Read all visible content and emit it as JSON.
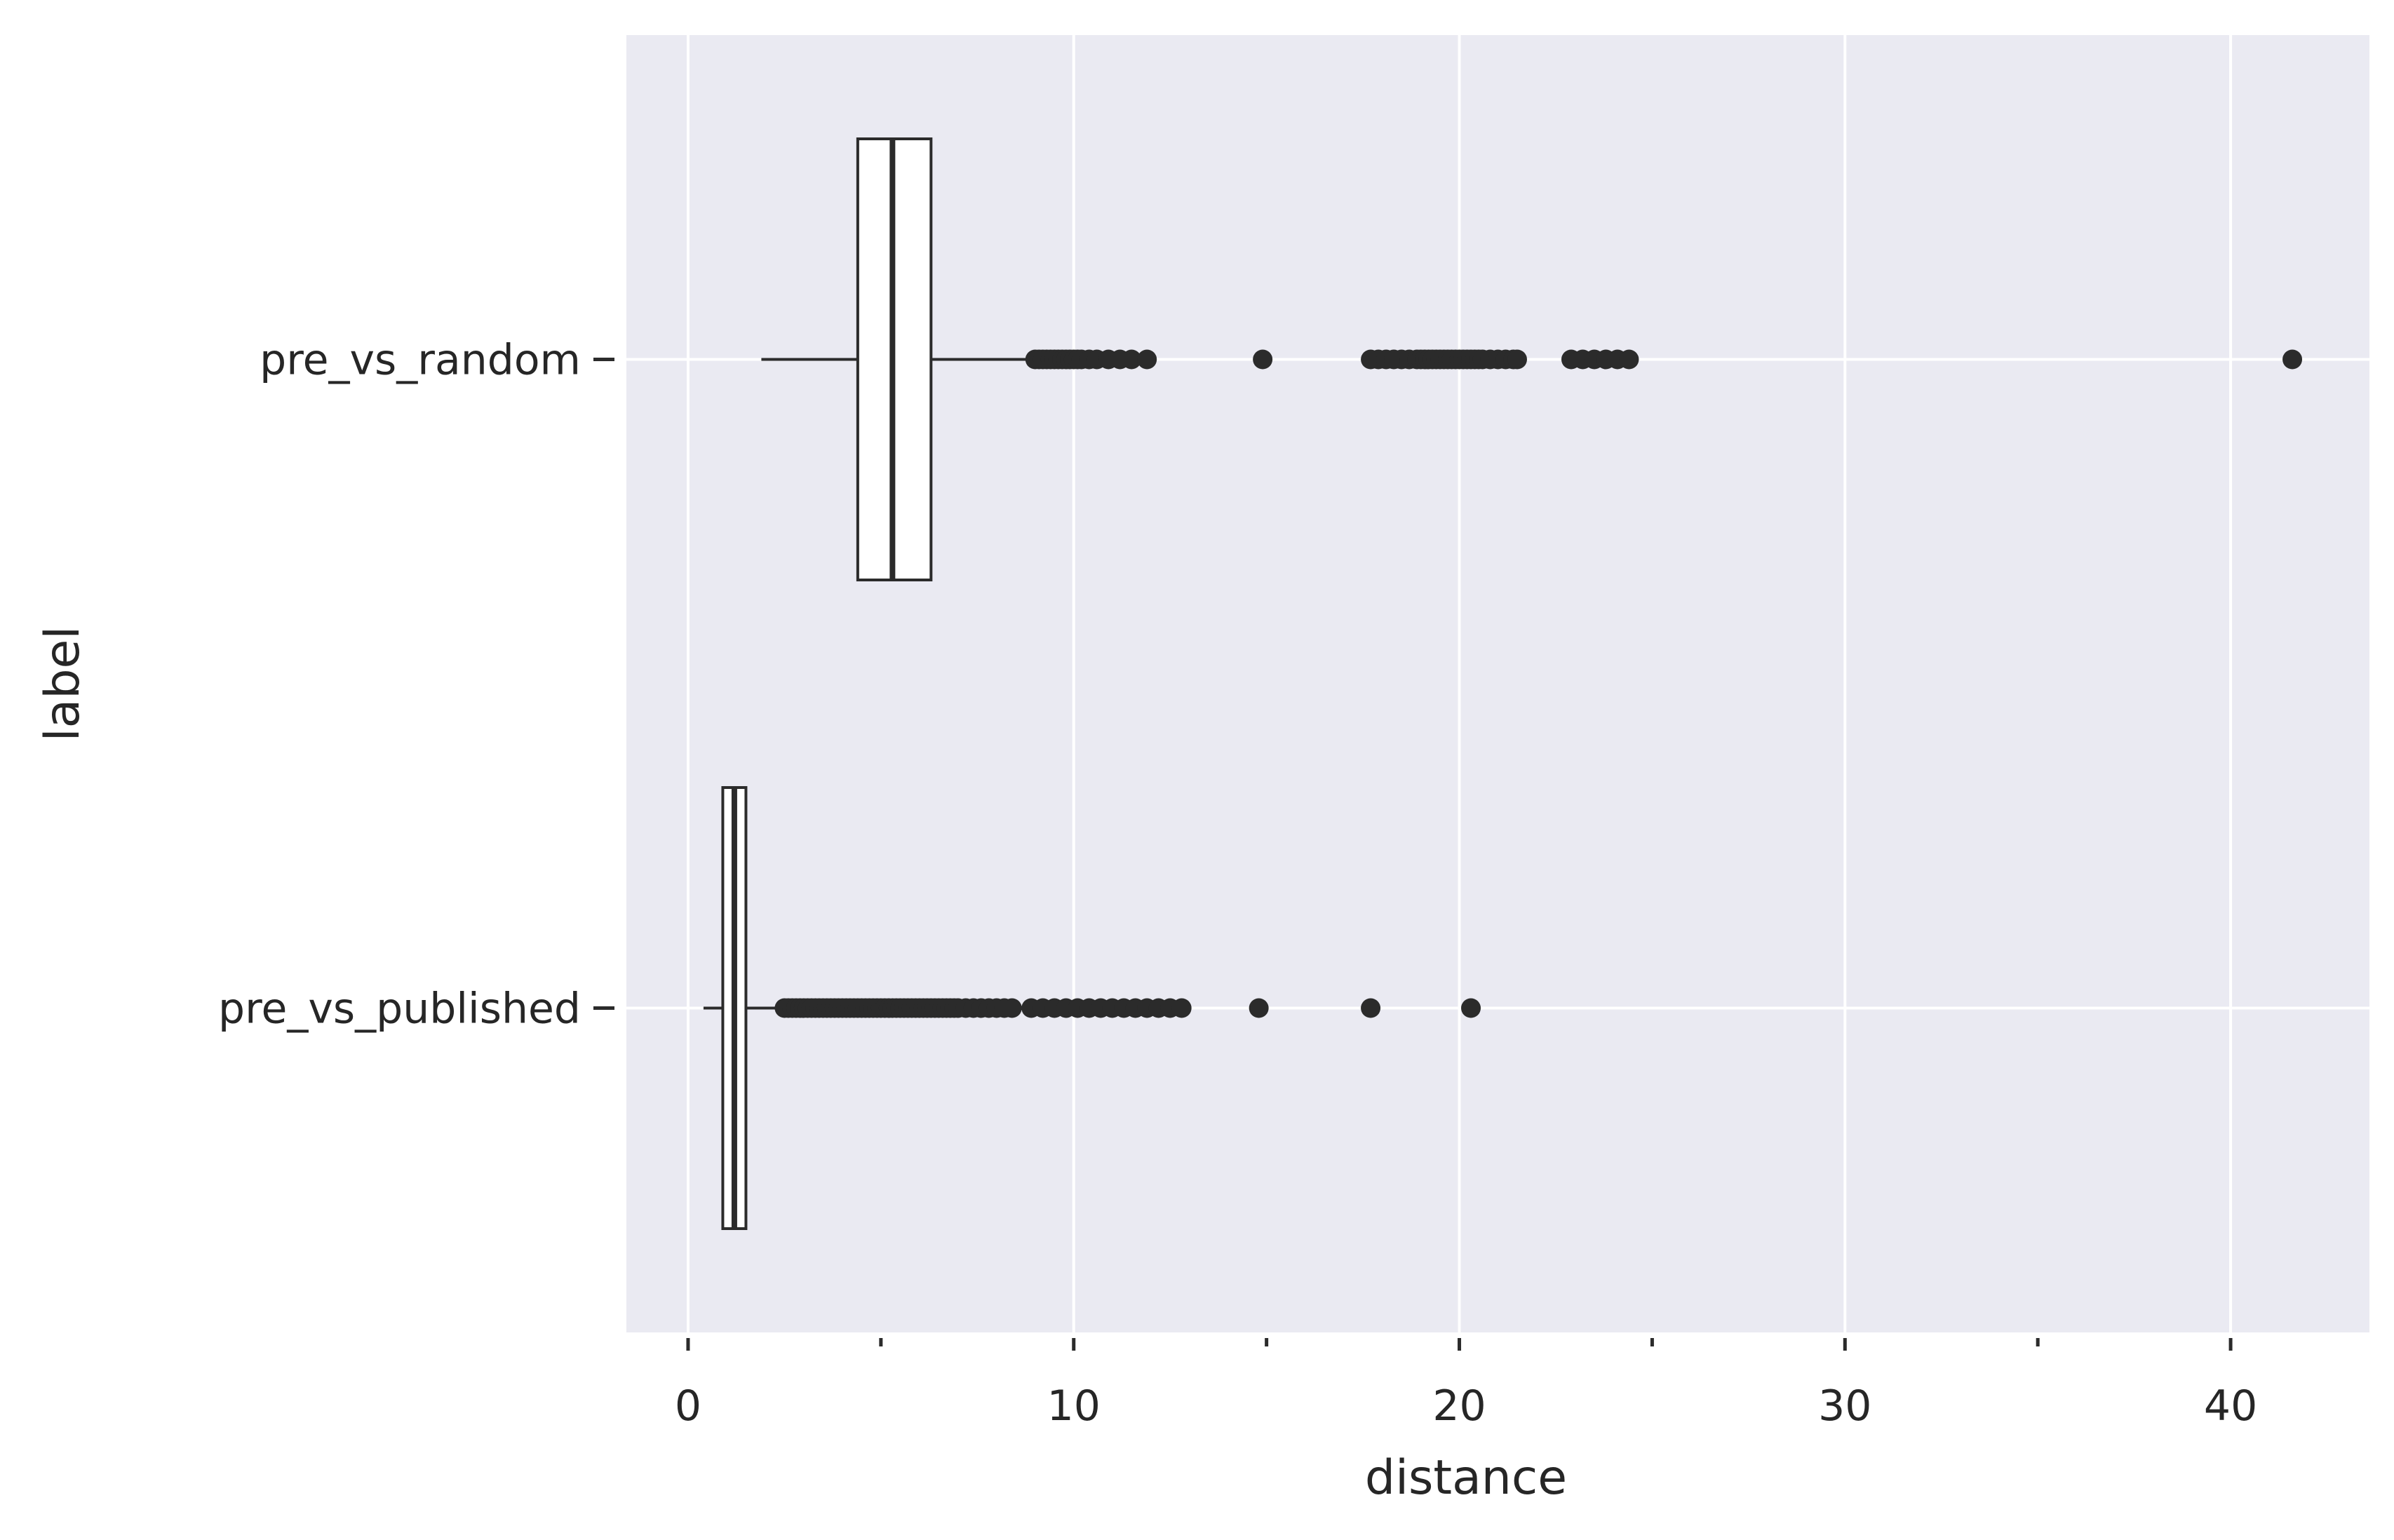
{
  "chart_data": {
    "type": "boxplot",
    "orientation": "horizontal",
    "xlabel": "distance",
    "ylabel": "label",
    "xlim": [
      -1.6,
      43.6
    ],
    "x_ticks": [
      0,
      10,
      20,
      30,
      40
    ],
    "x_minor_ticks": [
      5,
      15,
      25,
      35
    ],
    "grid": true,
    "background": "#eaeaf2",
    "box_color": "#ffffff",
    "line_color": "#2b2b2b",
    "categories": [
      "pre_vs_random",
      "pre_vs_published"
    ],
    "series": [
      {
        "label": "pre_vs_random",
        "whisker_low": 1.9,
        "q1": 4.4,
        "median": 5.3,
        "q3": 6.3,
        "whisker_high": 8.9,
        "outliers": [
          9.0,
          9.1,
          9.2,
          9.3,
          9.4,
          9.5,
          9.6,
          9.7,
          9.8,
          9.9,
          10.0,
          10.1,
          10.2,
          10.4,
          10.6,
          10.9,
          11.2,
          11.5,
          11.9,
          14.9,
          17.7,
          17.9,
          18.1,
          18.3,
          18.5,
          18.7,
          18.9,
          19.0,
          19.1,
          19.2,
          19.3,
          19.4,
          19.5,
          19.6,
          19.7,
          19.8,
          19.9,
          20.0,
          20.1,
          20.2,
          20.3,
          20.4,
          20.5,
          20.6,
          20.8,
          21.0,
          21.2,
          21.4,
          21.5,
          22.9,
          23.2,
          23.5,
          23.8,
          24.1,
          24.4,
          41.6
        ]
      },
      {
        "label": "pre_vs_published",
        "whisker_low": 0.4,
        "q1": 0.9,
        "median": 1.2,
        "q3": 1.5,
        "whisker_high": 2.4,
        "outliers": [
          2.5,
          2.6,
          2.7,
          2.8,
          2.9,
          3.0,
          3.1,
          3.2,
          3.3,
          3.4,
          3.5,
          3.6,
          3.7,
          3.8,
          3.9,
          4.0,
          4.1,
          4.2,
          4.3,
          4.4,
          4.5,
          4.6,
          4.7,
          4.8,
          4.9,
          5.0,
          5.1,
          5.2,
          5.3,
          5.4,
          5.5,
          5.6,
          5.7,
          5.8,
          5.9,
          6.0,
          6.1,
          6.2,
          6.3,
          6.4,
          6.5,
          6.6,
          6.7,
          6.8,
          6.9,
          7.0,
          7.2,
          7.4,
          7.6,
          7.8,
          8.0,
          8.2,
          8.4,
          8.9,
          9.2,
          9.5,
          9.8,
          10.1,
          10.4,
          10.7,
          11.0,
          11.3,
          11.6,
          11.9,
          12.2,
          12.5,
          12.8,
          14.8,
          17.7,
          20.3
        ]
      }
    ]
  }
}
